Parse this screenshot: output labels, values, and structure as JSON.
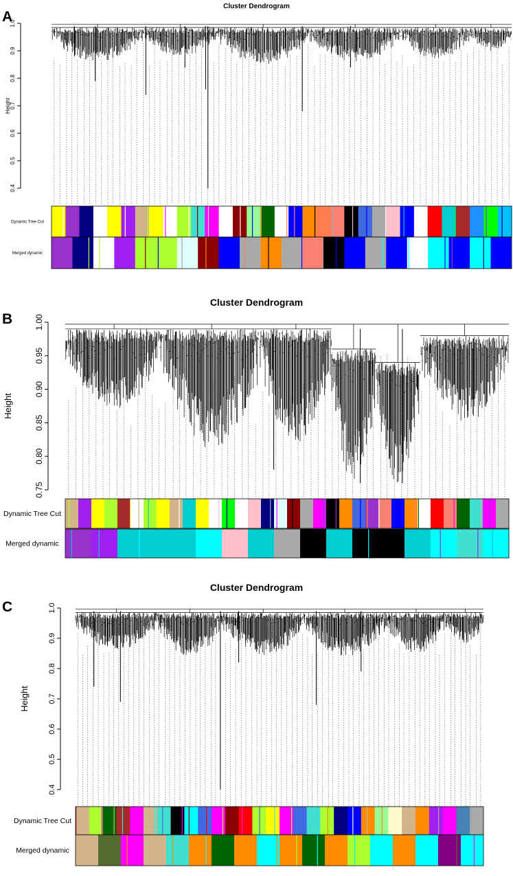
{
  "figure": {
    "panels": [
      {
        "letter": "A"
      },
      {
        "letter": "B"
      },
      {
        "letter": "C"
      }
    ]
  },
  "chart_data": [
    {
      "type": "dendrogram",
      "panel": "A",
      "title": "Cluster Dendrogram",
      "ylabel": "Height",
      "ylim": [
        0.38,
        1.0
      ],
      "yticks": [
        0.4,
        0.5,
        0.6,
        0.7,
        0.8,
        0.9,
        1.0
      ],
      "tick_labels": [
        "0.4",
        "0.5",
        "0.6",
        "0.7",
        "0.8",
        "0.9",
        "1.0"
      ],
      "seed": 11,
      "clusters": [
        {
          "start": 0.0,
          "end": 0.2,
          "leaf_min": 0.86,
          "leaf_max": 0.985
        },
        {
          "start": 0.2,
          "end": 0.36,
          "leaf_min": 0.88,
          "leaf_max": 0.985
        },
        {
          "start": 0.36,
          "end": 0.56,
          "leaf_min": 0.85,
          "leaf_max": 0.985
        },
        {
          "start": 0.56,
          "end": 0.76,
          "leaf_min": 0.86,
          "leaf_max": 0.985
        },
        {
          "start": 0.76,
          "end": 0.91,
          "leaf_min": 0.87,
          "leaf_max": 0.985
        },
        {
          "start": 0.91,
          "end": 1.0,
          "leaf_min": 0.9,
          "leaf_max": 0.985
        }
      ],
      "outliers": [
        {
          "x": 0.05,
          "low": 0.88
        },
        {
          "x": 0.095,
          "low": 0.79
        },
        {
          "x": 0.205,
          "low": 0.74
        },
        {
          "x": 0.34,
          "low": 0.4
        },
        {
          "x": 0.335,
          "low": 0.76
        },
        {
          "x": 0.545,
          "low": 0.68
        },
        {
          "x": 0.29,
          "low": 0.84
        },
        {
          "x": 0.65,
          "low": 0.84
        }
      ],
      "color_rows": [
        {
          "label": "Dynamic Tree Cut",
          "colors": [
            "#ffff00",
            "#9932cc",
            "#000080",
            "#ffffff",
            "#ffff00",
            "#a020f0",
            "#d2b48c",
            "#ffff00",
            "#ffffff",
            "#adff2f",
            "#40e0d0",
            "#ff00ff",
            "#ffffff",
            "#8b0000",
            "#98fb98",
            "#006400",
            "#ffffff",
            "#0000ff",
            "#ff8c00",
            "#ff7f50",
            "#fa8072",
            "#000000",
            "#4169e1",
            "#a9a9a9",
            "#ffc0cb",
            "#0000ff",
            "#ffffff",
            "#ff0000",
            "#00ced1",
            "#a52a2a",
            "#1e90ff",
            "#00ff00",
            "#00bfff"
          ]
        },
        {
          "label": "Merged dynamic",
          "colors": [
            "#9932cc",
            "#000080",
            "#ffffff",
            "#a020f0",
            "#adff2f",
            "#adff2f",
            "#e0ffff",
            "#8b0000",
            "#0000ff",
            "#a9a9a9",
            "#ff8c00",
            "#a9a9a9",
            "#fa8072",
            "#000000",
            "#0000ff",
            "#a9a9a9",
            "#0000ff",
            "#ffffff",
            "#00ffff",
            "#0000ff",
            "#00ffff",
            "#0000ff"
          ]
        }
      ]
    },
    {
      "type": "dendrogram",
      "panel": "B",
      "title": "Cluster Dendrogram",
      "ylabel": "Height",
      "ylim": [
        0.75,
        1.0
      ],
      "yticks": [
        0.75,
        0.8,
        0.85,
        0.9,
        0.95,
        1.0
      ],
      "tick_labels": [
        "0.75",
        "0.80",
        "0.85",
        "0.90",
        "0.95",
        "1.00"
      ],
      "seed": 23,
      "clusters": [
        {
          "start": 0.0,
          "end": 0.22,
          "leaf_min": 0.87,
          "leaf_max": 0.99
        },
        {
          "start": 0.22,
          "end": 0.44,
          "leaf_min": 0.81,
          "leaf_max": 0.99
        },
        {
          "start": 0.44,
          "end": 0.6,
          "leaf_min": 0.82,
          "leaf_max": 0.99
        },
        {
          "start": 0.6,
          "end": 0.7,
          "leaf_min": 0.76,
          "leaf_max": 0.96
        },
        {
          "start": 0.7,
          "end": 0.8,
          "leaf_min": 0.76,
          "leaf_max": 0.94
        },
        {
          "start": 0.8,
          "end": 1.0,
          "leaf_min": 0.85,
          "leaf_max": 0.98
        }
      ],
      "outliers": [
        {
          "x": 0.47,
          "low": 0.78
        },
        {
          "x": 0.665,
          "low": 0.76
        },
        {
          "x": 0.76,
          "low": 0.76
        }
      ],
      "color_rows": [
        {
          "label": "Dynamic Tree Cut",
          "colors": [
            "#d2b48c",
            "#a020f0",
            "#ffff00",
            "#adff2f",
            "#a52a2a",
            "#ffffff",
            "#adff2f",
            "#ffff00",
            "#d2b48c",
            "#00ced1",
            "#ffff00",
            "#ffffff",
            "#00ff00",
            "#ffffff",
            "#ffc0cb",
            "#000080",
            "#e0ffff",
            "#8b0000",
            "#a9a9a9",
            "#ff00ff",
            "#000000",
            "#ff8c00",
            "#4169e1",
            "#9932cc",
            "#fa8072",
            "#0000ff",
            "#ff8c00",
            "#ffffff",
            "#ff0000",
            "#fa8072",
            "#006400",
            "#40e0d0",
            "#ff00ff",
            "#a9a9a9"
          ]
        },
        {
          "label": "Merged dynamic",
          "colors": [
            "#9932cc",
            "#a020f0",
            "#00ced1",
            "#00ced1",
            "#00ced1",
            "#00ffff",
            "#ffc0cb",
            "#00ced1",
            "#a9a9a9",
            "#000000",
            "#00ced1",
            "#000000",
            "#000000",
            "#00ced1",
            "#00ffff",
            "#40e0d0",
            "#00ffff"
          ]
        }
      ]
    },
    {
      "type": "dendrogram",
      "panel": "C",
      "title": "Cluster Dendrogram",
      "ylabel": "Height",
      "ylim": [
        0.38,
        1.0
      ],
      "yticks": [
        0.4,
        0.5,
        0.6,
        0.7,
        0.8,
        0.9,
        1.0
      ],
      "tick_labels": [
        "0.4",
        "0.5",
        "0.6",
        "0.7",
        "0.8",
        "0.9",
        "1.0"
      ],
      "seed": 37,
      "clusters": [
        {
          "start": 0.0,
          "end": 0.2,
          "leaf_min": 0.86,
          "leaf_max": 0.985
        },
        {
          "start": 0.2,
          "end": 0.36,
          "leaf_min": 0.84,
          "leaf_max": 0.985
        },
        {
          "start": 0.36,
          "end": 0.56,
          "leaf_min": 0.84,
          "leaf_max": 0.985
        },
        {
          "start": 0.56,
          "end": 0.76,
          "leaf_min": 0.84,
          "leaf_max": 0.985
        },
        {
          "start": 0.76,
          "end": 0.91,
          "leaf_min": 0.85,
          "leaf_max": 0.985
        },
        {
          "start": 0.91,
          "end": 1.0,
          "leaf_min": 0.88,
          "leaf_max": 0.985
        }
      ],
      "outliers": [
        {
          "x": 0.045,
          "low": 0.74
        },
        {
          "x": 0.11,
          "low": 0.69
        },
        {
          "x": 0.355,
          "low": 0.4
        },
        {
          "x": 0.59,
          "low": 0.68
        },
        {
          "x": 0.7,
          "low": 0.79
        },
        {
          "x": 0.4,
          "low": 0.82
        }
      ],
      "color_rows": [
        {
          "label": "Dynamic Tree Cut",
          "colors": [
            "#d2b48c",
            "#adff2f",
            "#006400",
            "#a52a2a",
            "#ff00ff",
            "#d2b48c",
            "#40e0d0",
            "#000000",
            "#00ffff",
            "#4169e1",
            "#ff00ff",
            "#8b0000",
            "#ff0000",
            "#adff2f",
            "#ffff00",
            "#ff00ff",
            "#4169e1",
            "#40e0d0",
            "#adff2f",
            "#000080",
            "#0000ff",
            "#ff8c00",
            "#98fb98",
            "#fffacd",
            "#d2b48c",
            "#ff8c00",
            "#a020f0",
            "#ff00ff",
            "#4682b4",
            "#a9a9a9"
          ]
        },
        {
          "label": "Merged dynamic",
          "colors": [
            "#d2b48c",
            "#556b2f",
            "#ff00ff",
            "#d2b48c",
            "#40e0d0",
            "#ff8c00",
            "#006400",
            "#ff8c00",
            "#00ffff",
            "#ff8c00",
            "#006400",
            "#ff8c00",
            "#adff2f",
            "#00ffff",
            "#ff8c00",
            "#00ffff",
            "#800080",
            "#00ffff"
          ]
        }
      ]
    }
  ]
}
